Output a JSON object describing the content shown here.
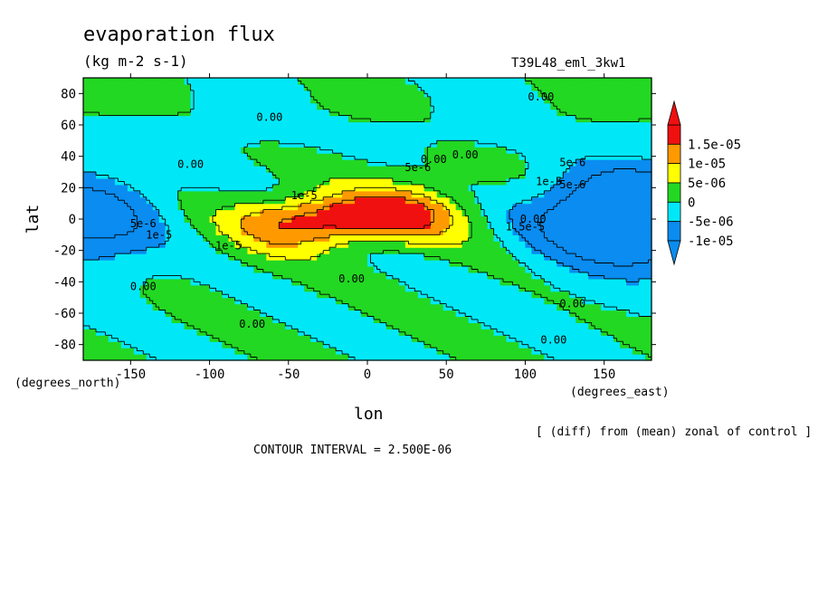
{
  "figure": {
    "title": "evaporation flux",
    "units": "(kg m-2 s-1)",
    "run_label": "T39L48_eml_3kw1",
    "x_unit_label": "(degrees_east)",
    "y_unit_label": "(degrees_north)",
    "footnote": "[ (diff) from (mean) zonal of control ]",
    "contour_interval": "CONTOUR INTERVAL = 2.500E-06"
  },
  "chart_data": {
    "type": "heatmap",
    "title": "evaporation flux",
    "xlabel": "lon",
    "ylabel": "lat",
    "xlim": [
      -180,
      180
    ],
    "ylim": [
      -90,
      90
    ],
    "xticks": [
      -150,
      -100,
      -50,
      0,
      50,
      100,
      150
    ],
    "xtick_labels": [
      "-150",
      "-100",
      "-50",
      "0",
      "50",
      "100",
      "150"
    ],
    "yticks": [
      -80,
      -60,
      -40,
      -20,
      0,
      20,
      40,
      60,
      80
    ],
    "ytick_labels": [
      "-80",
      "-60",
      "-40",
      "-20",
      "0",
      "20",
      "40",
      "60",
      "80"
    ],
    "colorbar": {
      "levels": [
        -1e-05,
        -5e-06,
        0,
        5e-06,
        1e-05,
        1.5e-05
      ],
      "labels": [
        "-1e-05",
        "-5e-06",
        "0",
        "5e-06",
        "1e-05",
        "1.5e-05"
      ],
      "colors": [
        "#0a8cf0",
        "#00e8f8",
        "#22d822",
        "#ffff00",
        "#ff9900",
        "#f01010"
      ],
      "extend": "both"
    },
    "contour_labels": [
      {
        "lon": -62,
        "lat": 65,
        "text": "0.00"
      },
      {
        "lon": 110,
        "lat": 78,
        "text": "0.00"
      },
      {
        "lon": -112,
        "lat": 35,
        "text": "0.00"
      },
      {
        "lon": 62,
        "lat": 41,
        "text": "0.00"
      },
      {
        "lon": 42,
        "lat": 38,
        "text": "0.00"
      },
      {
        "lon": 130,
        "lat": 36,
        "text": "5e-6"
      },
      {
        "lon": 115,
        "lat": 24,
        "text": "1e-5"
      },
      {
        "lon": 130,
        "lat": 22,
        "text": "5e-6"
      },
      {
        "lon": 32,
        "lat": 33,
        "text": "5e-6"
      },
      {
        "lon": -40,
        "lat": 15,
        "text": "1e-5"
      },
      {
        "lon": -88,
        "lat": -17,
        "text": "1e-5"
      },
      {
        "lon": -132,
        "lat": -10,
        "text": "1e-5"
      },
      {
        "lon": -142,
        "lat": -3,
        "text": "5e-6"
      },
      {
        "lon": 105,
        "lat": 0,
        "text": "0.00"
      },
      {
        "lon": 100,
        "lat": -5,
        "text": "1.5e-5"
      },
      {
        "lon": -142,
        "lat": -43,
        "text": "0.00"
      },
      {
        "lon": -10,
        "lat": -38,
        "text": "0.00"
      },
      {
        "lon": 130,
        "lat": -54,
        "text": "0.00"
      },
      {
        "lon": -73,
        "lat": -67,
        "text": "0.00"
      },
      {
        "lon": 118,
        "lat": -77,
        "text": "0.00"
      }
    ]
  }
}
